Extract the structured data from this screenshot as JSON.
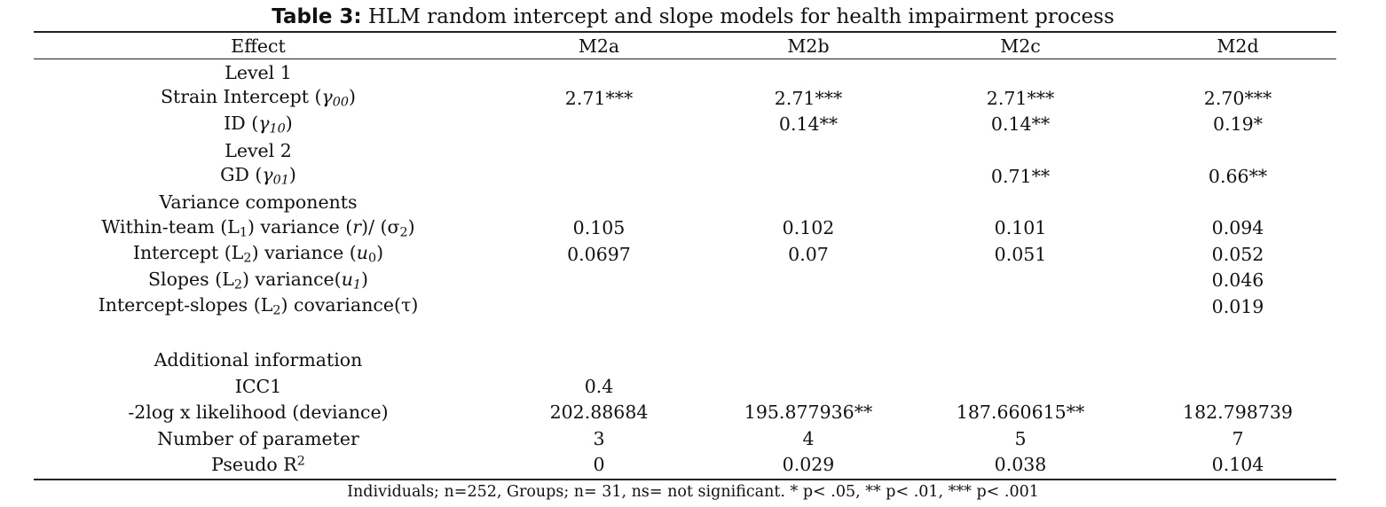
{
  "caption": {
    "label": "Table 3:",
    "title": "HLM random intercept and slope models for health impairment process"
  },
  "table": {
    "columns": [
      "Effect",
      "M2a",
      "M2b",
      "M2c",
      "M2d"
    ],
    "level1_heading": "Level 1",
    "strain_intercept": {
      "label": "Strain Intercept (",
      "symbol": "γ",
      "subscript": "00",
      "close": ")",
      "values": [
        "2.71***",
        "2.71***",
        "2.71***",
        "2.70***"
      ]
    },
    "id": {
      "label": "ID (",
      "symbol": "γ",
      "subscript": "10",
      "close": ")",
      "values": [
        "",
        "0.14**",
        "0.14**",
        "0.19*"
      ]
    },
    "level2_heading": "Level 2",
    "gd": {
      "label": "GD (",
      "symbol": "γ",
      "subscript": "01",
      "close": ")",
      "values": [
        "",
        "",
        "0.71**",
        "0.66**"
      ]
    },
    "variance_heading": "Variance components",
    "within_team": {
      "label_a": "Within-team (L",
      "sub_a": "1",
      "label_b": ") variance (",
      "symbol": "r",
      "label_c": ")/ (σ",
      "sub_c": "2",
      "close": ")",
      "values": [
        "0.105",
        "0.102",
        "0.101",
        "0.094"
      ]
    },
    "intercept_var": {
      "label_a": "Intercept (L",
      "sub_a": "2",
      "label_b": ") variance (",
      "symbol": "u",
      "sub_sym": "0",
      "close": ")",
      "values": [
        "0.0697",
        "0.07",
        "0.051",
        "0.052"
      ]
    },
    "slopes_var": {
      "label_a": "Slopes (L",
      "sub_a": "2",
      "label_b": ") variance(",
      "symbol": "u",
      "sub_sym": "1",
      "close": ")",
      "values": [
        "",
        "",
        "",
        "0.046"
      ]
    },
    "covariance": {
      "label_a": "Intercept-slopes (L",
      "sub_a": "2",
      "label_b": ") covariance(τ)",
      "values": [
        "",
        "",
        "",
        "0.019"
      ]
    },
    "additional_heading": "Additional information",
    "icc1": {
      "label": "ICC1",
      "values": [
        "0.4",
        "",
        "",
        ""
      ]
    },
    "deviance": {
      "label": "-2log x likelihood (deviance)",
      "values": [
        "202.88684",
        "195.877936**",
        "187.660615**",
        "182.798739"
      ]
    },
    "num_params": {
      "label": "Number of parameter",
      "values": [
        "3",
        "4",
        "5",
        "7"
      ]
    },
    "pseudo_r2": {
      "label": "Pseudo R",
      "sup": "2",
      "values": [
        "0",
        "0.029",
        "0.038",
        "0.104"
      ]
    }
  },
  "footnote": "Individuals; n=252, Groups; n= 31, ns= not significant. * p< .05, ** p< .01, *** p< .001"
}
